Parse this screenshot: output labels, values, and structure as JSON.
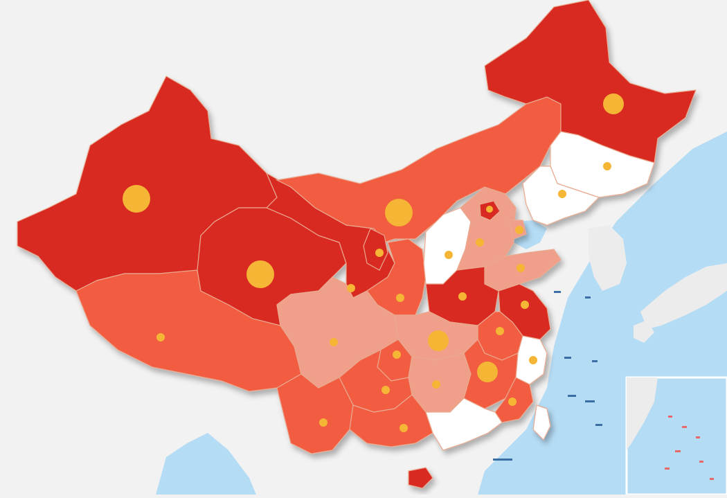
{
  "palette": {
    "dark": "#d92b22",
    "mid": "#f25d43",
    "light": "#f0a08a",
    "none": "#ffffff",
    "sea": "#b5dcf5",
    "land_foreign": "#ececec",
    "marker": "#f5b636"
  },
  "regions": [
    {
      "name": "xinjiang",
      "level": "dark",
      "marker": "large"
    },
    {
      "name": "tibet",
      "level": "mid",
      "marker": "small"
    },
    {
      "name": "qinghai",
      "level": "dark",
      "marker": "large"
    },
    {
      "name": "gansu",
      "level": "dark",
      "marker": "none"
    },
    {
      "name": "inner-mongolia",
      "level": "mid",
      "marker": "large"
    },
    {
      "name": "heilongjiang",
      "level": "dark",
      "marker": "medium"
    },
    {
      "name": "jilin",
      "level": "none",
      "marker": "small"
    },
    {
      "name": "liaoning",
      "level": "none",
      "marker": "small"
    },
    {
      "name": "ningxia",
      "level": "dark",
      "marker": "small"
    },
    {
      "name": "shaanxi",
      "level": "mid",
      "marker": "small"
    },
    {
      "name": "shanxi",
      "level": "none",
      "marker": "small"
    },
    {
      "name": "hebei",
      "level": "light",
      "marker": "small"
    },
    {
      "name": "beijing",
      "level": "dark",
      "marker": "none"
    },
    {
      "name": "tianjin",
      "level": "light",
      "marker": "small"
    },
    {
      "name": "shandong",
      "level": "light",
      "marker": "small"
    },
    {
      "name": "henan",
      "level": "dark",
      "marker": "small"
    },
    {
      "name": "jiangsu",
      "level": "dark",
      "marker": "small"
    },
    {
      "name": "anhui",
      "level": "mid",
      "marker": "small"
    },
    {
      "name": "zhejiang",
      "level": "none",
      "marker": "small"
    },
    {
      "name": "hubei",
      "level": "light",
      "marker": "medium"
    },
    {
      "name": "sichuan",
      "level": "light",
      "marker": "small"
    },
    {
      "name": "chongqing",
      "level": "mid",
      "marker": "small"
    },
    {
      "name": "hunan",
      "level": "light",
      "marker": "small"
    },
    {
      "name": "jiangxi",
      "level": "mid",
      "marker": "medium"
    },
    {
      "name": "fujian",
      "level": "mid",
      "marker": "small"
    },
    {
      "name": "guizhou",
      "level": "mid",
      "marker": "small"
    },
    {
      "name": "yunnan",
      "level": "mid",
      "marker": "small"
    },
    {
      "name": "guangxi",
      "level": "mid",
      "marker": "small"
    },
    {
      "name": "guangdong",
      "level": "none",
      "marker": "none"
    },
    {
      "name": "hainan",
      "level": "dark",
      "marker": "none"
    },
    {
      "name": "taiwan",
      "level": "none",
      "marker": "none"
    }
  ]
}
